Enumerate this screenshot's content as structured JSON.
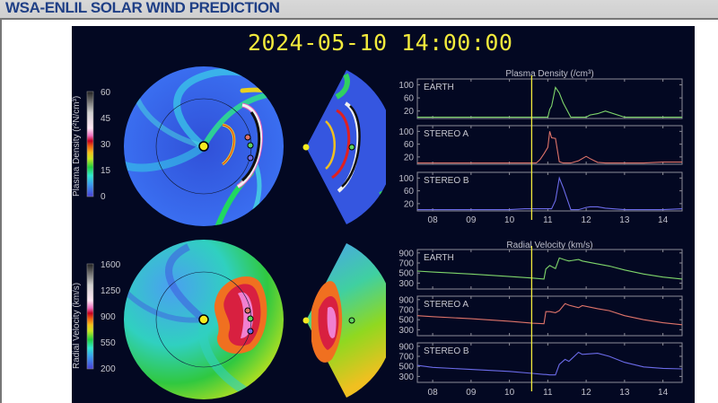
{
  "header": {
    "title": "WSA-ENLIL SOLAR WIND PREDICTION"
  },
  "timestamp": "2024-05-10 14:00:00",
  "colorbars": {
    "density": {
      "label": "Plasma Density (r²N/cm³)",
      "ticks": [
        "60",
        "45",
        "30",
        "15",
        "0"
      ]
    },
    "velocity": {
      "label": "Radial Velocity (km/s)",
      "ticks": [
        "1600",
        "1250",
        "900",
        "550",
        "200"
      ]
    }
  },
  "chart_data": [
    {
      "type": "line",
      "title": "Plasma Density (/cm³)",
      "xlabel": "",
      "ylabel": "",
      "x_ticks": [
        "08",
        "09",
        "10",
        "11",
        "12",
        "13",
        "14"
      ],
      "y_ticks": [
        "100",
        "60",
        "20"
      ],
      "ylim": [
        0,
        115
      ],
      "current_time_marker": 10.58,
      "x": [
        7.6,
        8,
        9,
        10,
        10.4,
        10.7,
        10.8,
        10.9,
        11.0,
        11.05,
        11.1,
        11.2,
        11.3,
        11.4,
        11.6,
        11.8,
        12.0,
        12.1,
        12.3,
        12.5,
        13,
        13.5,
        14,
        14.5
      ],
      "series": [
        {
          "name": "EARTH",
          "color": "#7fd66b",
          "values": [
            1,
            1,
            1,
            1,
            1,
            1,
            1,
            1,
            1,
            25,
            35,
            92,
            75,
            45,
            1,
            1,
            1,
            8,
            12,
            20,
            1,
            1,
            1,
            1
          ]
        },
        {
          "name": "STEREO A",
          "color": "#e0746a",
          "values": [
            1,
            1,
            1,
            1,
            1,
            1,
            12,
            30,
            50,
            100,
            80,
            78,
            5,
            1,
            1,
            8,
            22,
            15,
            3,
            1,
            1,
            1,
            4,
            4
          ]
        },
        {
          "name": "STEREO B",
          "color": "#6b6be8",
          "values": [
            1,
            1,
            1,
            1,
            4,
            4,
            4,
            4,
            4,
            4,
            4,
            30,
            100,
            70,
            1,
            1,
            8,
            10,
            10,
            6,
            1,
            1,
            1,
            4
          ]
        }
      ]
    },
    {
      "type": "line",
      "title": "Radial Velocity (km/s)",
      "xlabel": "",
      "ylabel": "",
      "x_ticks": [
        "08",
        "09",
        "10",
        "11",
        "12",
        "13",
        "14"
      ],
      "y_ticks": [
        "900",
        "700",
        "500",
        "300"
      ],
      "ylim": [
        200,
        950
      ],
      "current_time_marker": 10.58,
      "x": [
        7.6,
        8,
        9,
        10,
        10.6,
        10.9,
        10.95,
        11.05,
        11.2,
        11.3,
        11.45,
        11.55,
        11.8,
        11.9,
        12.3,
        12.6,
        13,
        13.5,
        14,
        14.5
      ],
      "series": [
        {
          "name": "EARTH",
          "color": "#7fd66b",
          "values": [
            540,
            520,
            480,
            430,
            400,
            380,
            580,
            650,
            590,
            800,
            760,
            740,
            770,
            740,
            680,
            640,
            560,
            480,
            420,
            380
          ]
        },
        {
          "name": "STEREO A",
          "color": "#e0746a",
          "values": [
            580,
            560,
            520,
            470,
            430,
            420,
            660,
            660,
            640,
            680,
            820,
            790,
            740,
            780,
            720,
            680,
            580,
            500,
            440,
            400
          ]
        },
        {
          "name": "STEREO B",
          "color": "#6b6be8",
          "values": [
            520,
            480,
            440,
            400,
            360,
            340,
            340,
            330,
            330,
            540,
            640,
            600,
            780,
            740,
            760,
            700,
            580,
            490,
            460,
            450
          ]
        }
      ]
    }
  ]
}
